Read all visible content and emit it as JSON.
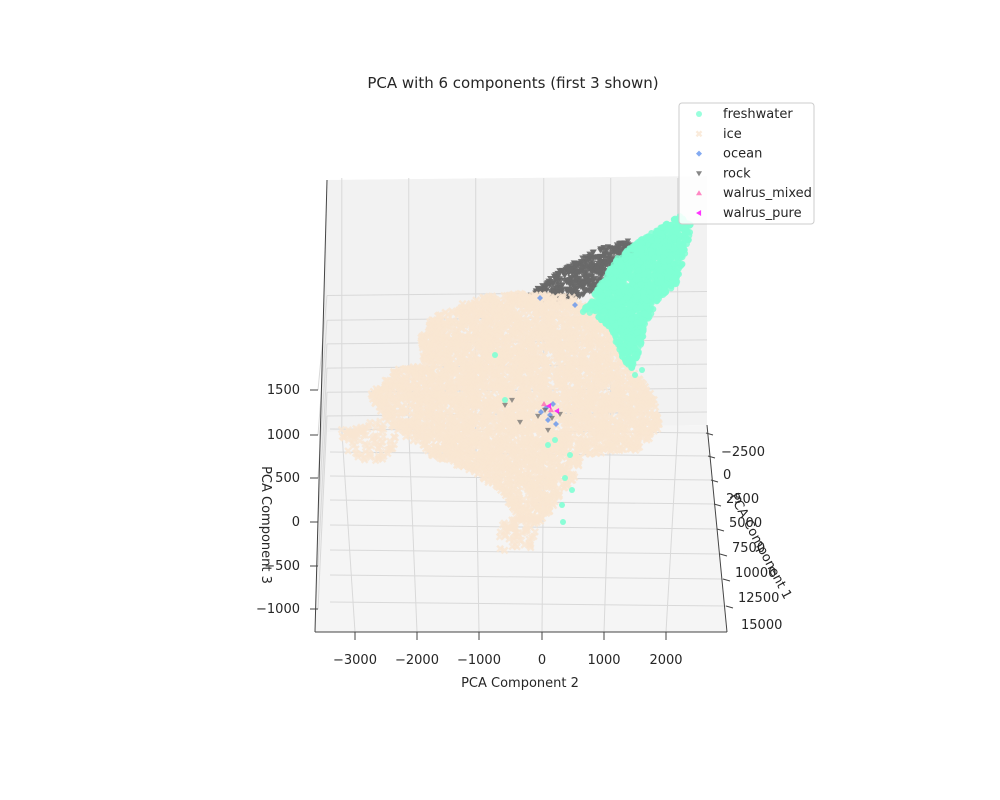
{
  "chart_data": {
    "type": "scatter",
    "title": "PCA with 6 components (first 3 shown)",
    "xlabel": "PCA Component 2",
    "ylabel": "PCA Component 3",
    "zlabel": "PCA Component 1",
    "x_ticks": [
      "−3000",
      "−2000",
      "−1000",
      "0",
      "1000",
      "2000"
    ],
    "y_ticks": [
      "−1000",
      "−500",
      "0",
      "500",
      "1000",
      "1500"
    ],
    "z_ticks": [
      "−2500",
      "0",
      "2500",
      "5000",
      "7500",
      "10000",
      "12500",
      "15000"
    ],
    "xlim": [
      -3600,
      2800
    ],
    "ylim": [
      -1250,
      1850
    ],
    "zlim": [
      -3000,
      15500
    ],
    "grid": true,
    "legend_position": "top-right",
    "series": [
      {
        "name": "freshwater",
        "color": "#7fffd4",
        "marker": "circle"
      },
      {
        "name": "ice",
        "color": "#f9e6d2",
        "marker": "x"
      },
      {
        "name": "ocean",
        "color": "#6495ed",
        "marker": "diamond"
      },
      {
        "name": "rock",
        "color": "#696969",
        "marker": "triangle-down"
      },
      {
        "name": "walrus_mixed",
        "color": "#ff69b4",
        "marker": "triangle-up"
      },
      {
        "name": "walrus_pure",
        "color": "#ff00ff",
        "marker": "triangle-left"
      }
    ]
  }
}
